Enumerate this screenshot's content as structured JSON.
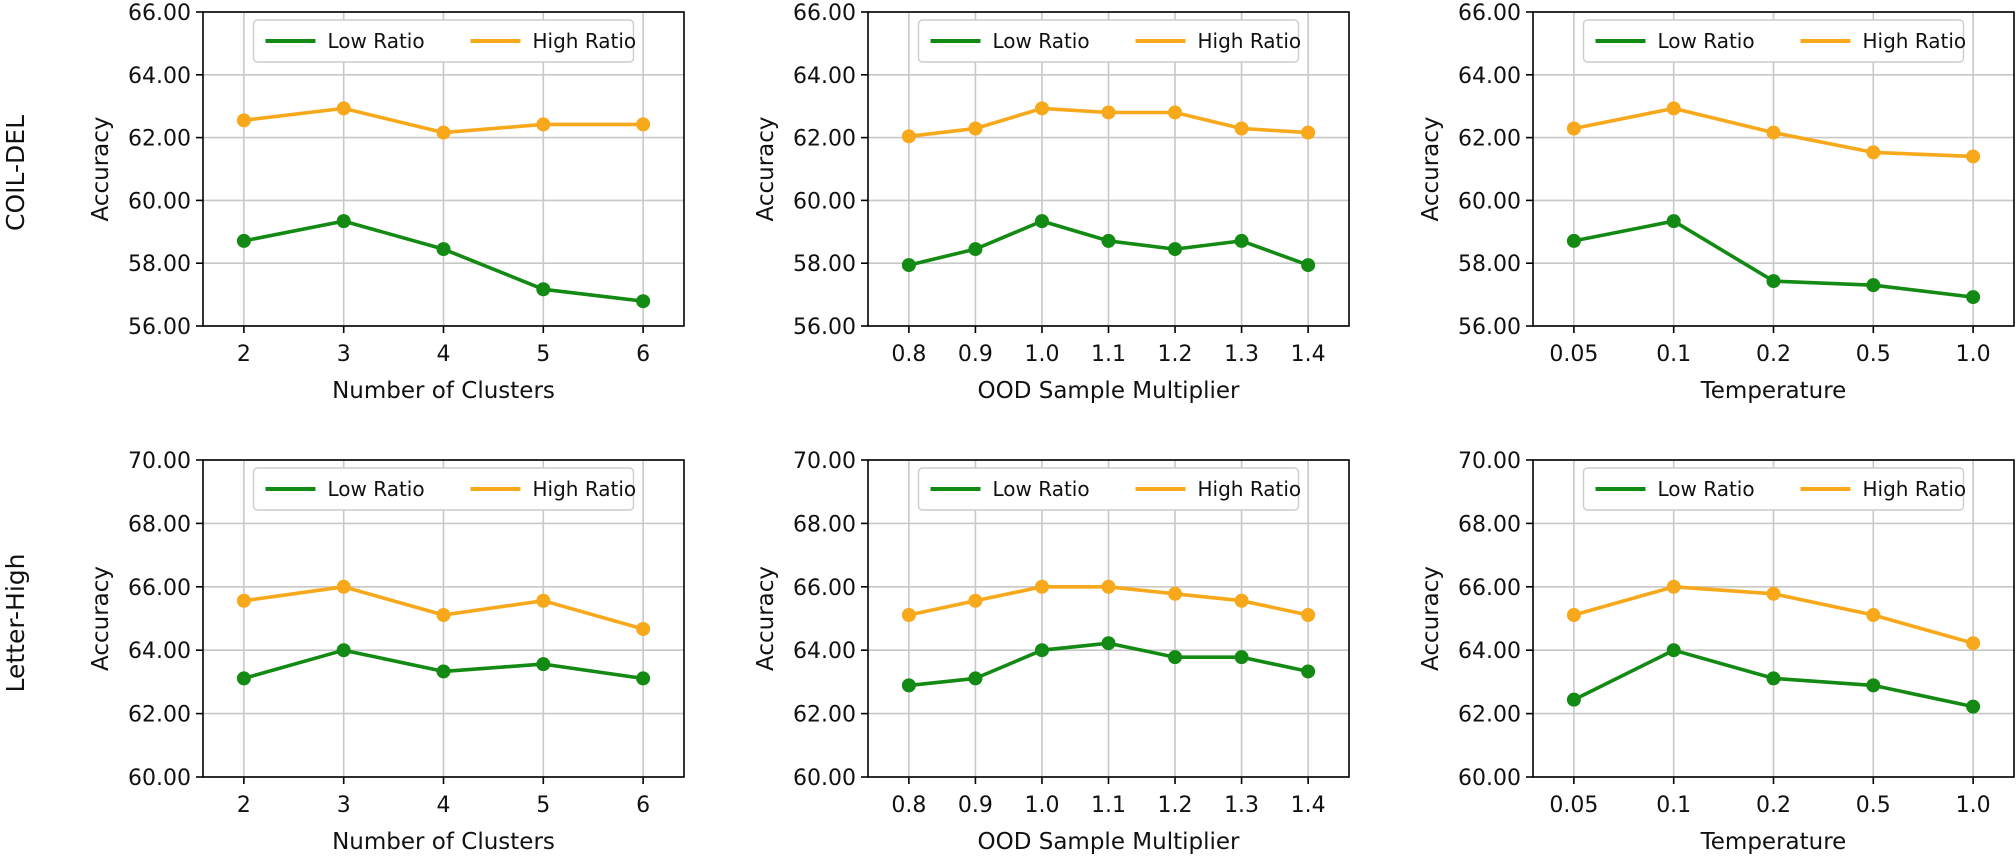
{
  "row_labels": [
    "COIL-DEL",
    "Letter-High"
  ],
  "colors": {
    "low": "#138a13",
    "high": "#f7a81b",
    "grid": "#c8c8c8",
    "axis": "#000000"
  },
  "chart_data": [
    {
      "type": "line",
      "row": 0,
      "col": 0,
      "categories": [
        "2",
        "3",
        "4",
        "5",
        "6"
      ],
      "xlabel": "Number of Clusters",
      "ylabel": "Accuracy",
      "ylim": [
        56,
        66
      ],
      "yticks": [
        "56.00",
        "58.00",
        "60.00",
        "62.00",
        "64.00",
        "66.00"
      ],
      "grid": true,
      "legend_position": "upper-center",
      "series": [
        {
          "name": "Low Ratio",
          "color": "#138a13",
          "values": [
            58.71,
            59.34,
            58.45,
            57.17,
            56.79
          ]
        },
        {
          "name": "High Ratio",
          "color": "#f7a81b",
          "values": [
            62.55,
            62.93,
            62.16,
            62.42,
            62.42
          ]
        }
      ]
    },
    {
      "type": "line",
      "row": 0,
      "col": 1,
      "categories": [
        "0.8",
        "0.9",
        "1.0",
        "1.1",
        "1.2",
        "1.3",
        "1.4"
      ],
      "xlabel": "OOD Sample Multiplier",
      "ylabel": "Accuracy",
      "ylim": [
        56,
        66
      ],
      "yticks": [
        "56.00",
        "58.00",
        "60.00",
        "62.00",
        "64.00",
        "66.00"
      ],
      "grid": true,
      "legend_position": "upper-center",
      "series": [
        {
          "name": "Low Ratio",
          "color": "#138a13",
          "values": [
            57.94,
            58.45,
            59.34,
            58.71,
            58.45,
            58.71,
            57.94
          ]
        },
        {
          "name": "High Ratio",
          "color": "#f7a81b",
          "values": [
            62.04,
            62.29,
            62.93,
            62.8,
            62.8,
            62.29,
            62.16
          ]
        }
      ]
    },
    {
      "type": "line",
      "row": 0,
      "col": 2,
      "categories": [
        "0.05",
        "0.1",
        "0.2",
        "0.5",
        "1.0"
      ],
      "xlabel": "Temperature",
      "ylabel": "Accuracy",
      "ylim": [
        56,
        66
      ],
      "yticks": [
        "56.00",
        "58.00",
        "60.00",
        "62.00",
        "64.00",
        "66.00"
      ],
      "grid": true,
      "legend_position": "upper-center",
      "series": [
        {
          "name": "Low Ratio",
          "color": "#138a13",
          "values": [
            58.71,
            59.34,
            57.43,
            57.3,
            56.92
          ]
        },
        {
          "name": "High Ratio",
          "color": "#f7a81b",
          "values": [
            62.29,
            62.93,
            62.16,
            61.53,
            61.4
          ]
        }
      ]
    },
    {
      "type": "line",
      "row": 1,
      "col": 0,
      "categories": [
        "2",
        "3",
        "4",
        "5",
        "6"
      ],
      "xlabel": "Number of Clusters",
      "ylabel": "Accuracy",
      "ylim": [
        60,
        70
      ],
      "yticks": [
        "60.00",
        "62.00",
        "64.00",
        "66.00",
        "68.00",
        "70.00"
      ],
      "grid": true,
      "legend_position": "upper-center",
      "series": [
        {
          "name": "Low Ratio",
          "color": "#138a13",
          "values": [
            63.11,
            64.0,
            63.33,
            63.56,
            63.11
          ]
        },
        {
          "name": "High Ratio",
          "color": "#f7a81b",
          "values": [
            65.56,
            66.0,
            65.11,
            65.56,
            64.67
          ]
        }
      ]
    },
    {
      "type": "line",
      "row": 1,
      "col": 1,
      "categories": [
        "0.8",
        "0.9",
        "1.0",
        "1.1",
        "1.2",
        "1.3",
        "1.4"
      ],
      "xlabel": "OOD Sample Multiplier",
      "ylabel": "Accuracy",
      "ylim": [
        60,
        70
      ],
      "yticks": [
        "60.00",
        "62.00",
        "64.00",
        "66.00",
        "68.00",
        "70.00"
      ],
      "grid": true,
      "legend_position": "upper-center",
      "series": [
        {
          "name": "Low Ratio",
          "color": "#138a13",
          "values": [
            62.89,
            63.11,
            64.0,
            64.22,
            63.78,
            63.78,
            63.33
          ]
        },
        {
          "name": "High Ratio",
          "color": "#f7a81b",
          "values": [
            65.11,
            65.56,
            66.0,
            66.0,
            65.78,
            65.56,
            65.11
          ]
        }
      ]
    },
    {
      "type": "line",
      "row": 1,
      "col": 2,
      "categories": [
        "0.05",
        "0.1",
        "0.2",
        "0.5",
        "1.0"
      ],
      "xlabel": "Temperature",
      "ylabel": "Accuracy",
      "ylim": [
        60,
        70
      ],
      "yticks": [
        "60.00",
        "62.00",
        "64.00",
        "66.00",
        "68.00",
        "70.00"
      ],
      "grid": true,
      "legend_position": "upper-center",
      "series": [
        {
          "name": "Low Ratio",
          "color": "#138a13",
          "values": [
            62.44,
            64.0,
            63.11,
            62.89,
            62.22
          ]
        },
        {
          "name": "High Ratio",
          "color": "#f7a81b",
          "values": [
            65.11,
            66.0,
            65.78,
            65.11,
            64.22
          ]
        }
      ]
    }
  ]
}
